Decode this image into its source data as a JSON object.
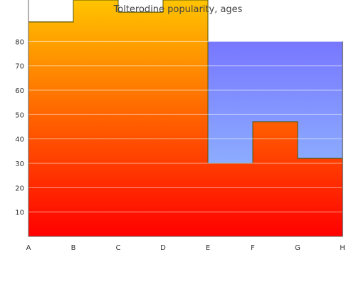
{
  "chart_data": {
    "type": "area",
    "title": "Tolterodine popularity, ages",
    "categories": [
      "A",
      "B",
      "C",
      "D",
      "E",
      "F",
      "G",
      "H"
    ],
    "y_ticks": [
      10,
      20,
      30,
      40,
      50,
      60,
      70,
      80
    ],
    "ylim": [
      0,
      97
    ],
    "grid": true,
    "step": true,
    "series": [
      {
        "values": [
          88,
          97,
          92,
          97,
          30,
          47,
          32,
          32
        ],
        "fill_top": "#ffc400",
        "fill_bottom": "#ff0000",
        "line": "#555500"
      },
      {
        "values": [
          80,
          80,
          80,
          80,
          80,
          80,
          80,
          80
        ],
        "range": [
          4,
          7
        ],
        "fill_top": "#7777ff",
        "fill_bottom": "#99ccff"
      }
    ]
  }
}
